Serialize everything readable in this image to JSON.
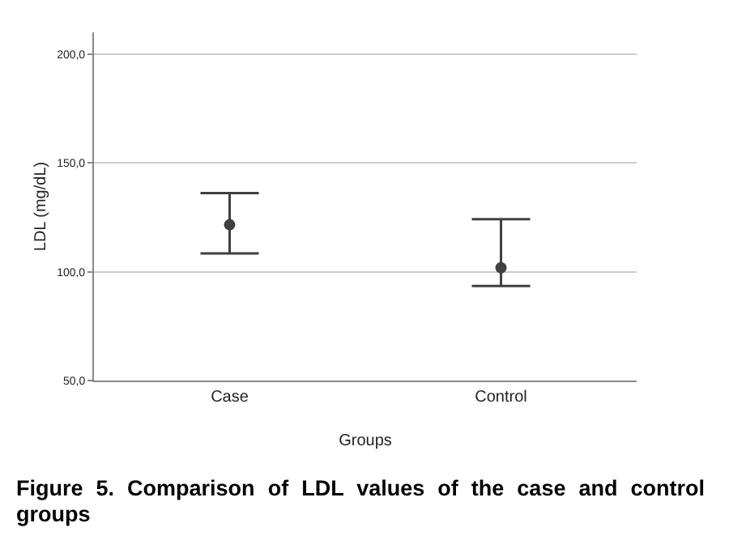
{
  "chart_data": {
    "type": "scatter",
    "xlabel": "Groups",
    "ylabel": "LDL (mg/dL)",
    "categories": [
      "Case",
      "Control"
    ],
    "values": [
      121.6,
      101.8
    ],
    "errors": [
      [
        108.4,
        136.1
      ],
      [
        93.4,
        124.1
      ]
    ],
    "color": "#404040",
    "marker": "circle",
    "ylim": [
      50,
      210
    ],
    "yticks": [
      {
        "value": 50,
        "label": "50,0"
      },
      {
        "value": 100,
        "label": "100,0"
      },
      {
        "value": 150,
        "label": "150,0"
      },
      {
        "value": 200,
        "label": "200,0"
      }
    ],
    "grid": "y",
    "annotations": [
      "Figure 5. Comparison of LDL values of the case and control groups"
    ]
  }
}
